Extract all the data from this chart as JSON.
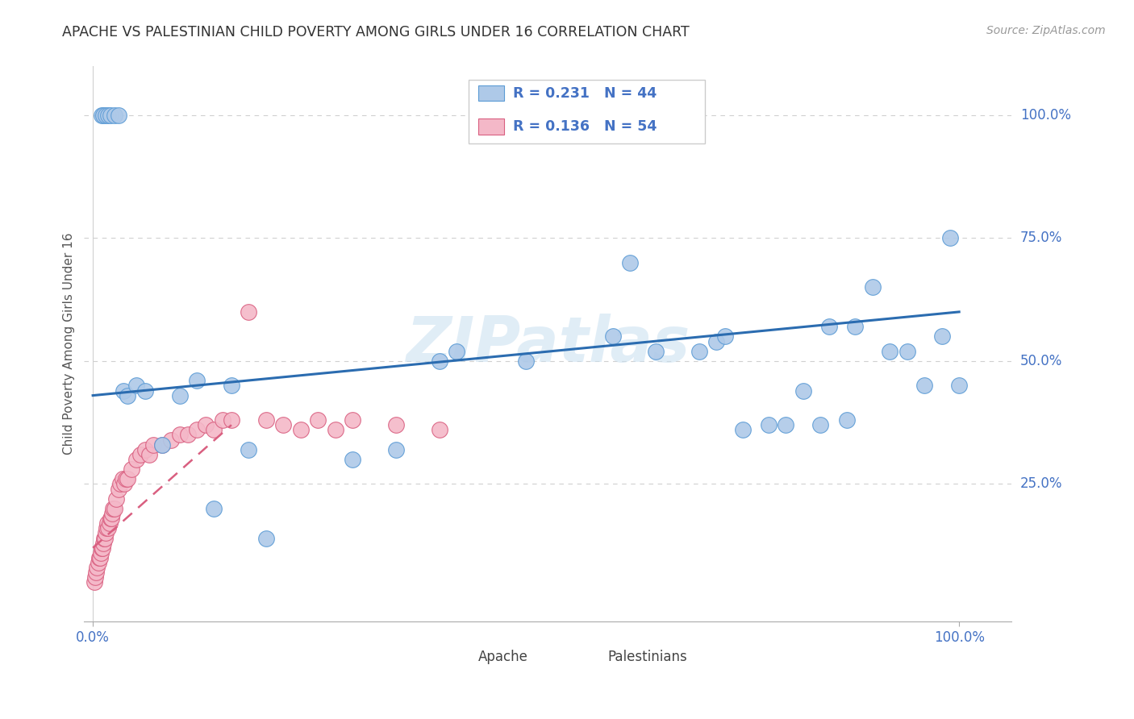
{
  "title": "APACHE VS PALESTINIAN CHILD POVERTY AMONG GIRLS UNDER 16 CORRELATION CHART",
  "source": "Source: ZipAtlas.com",
  "ylabel": "Child Poverty Among Girls Under 16",
  "watermark": "ZIPatlas",
  "apache_R": "0.231",
  "apache_N": "44",
  "palestinian_R": "0.136",
  "palestinian_N": "54",
  "apache_color": "#aec9e8",
  "apache_edge": "#5b9bd5",
  "palestinian_color": "#f4b8c8",
  "palestinian_edge": "#d95f80",
  "trendline_apache_color": "#2b6cb0",
  "trendline_palestinian_color": "#d95f80",
  "background_color": "#ffffff",
  "grid_color": "#d0d0d0",
  "title_color": "#333333",
  "legend_text_color": "#4472c4",
  "axis_tick_color": "#4472c4",
  "apache_x": [
    0.01,
    0.012,
    0.015,
    0.018,
    0.02,
    0.025,
    0.03,
    0.035,
    0.04,
    0.05,
    0.06,
    0.08,
    0.1,
    0.12,
    0.14,
    0.16,
    0.18,
    0.2,
    0.3,
    0.35,
    0.4,
    0.42,
    0.5,
    0.6,
    0.62,
    0.65,
    0.7,
    0.72,
    0.73,
    0.75,
    0.78,
    0.8,
    0.82,
    0.84,
    0.85,
    0.87,
    0.88,
    0.9,
    0.92,
    0.94,
    0.96,
    0.98,
    0.99,
    1.0
  ],
  "apache_y": [
    1.0,
    1.0,
    1.0,
    1.0,
    1.0,
    1.0,
    1.0,
    0.44,
    0.43,
    0.45,
    0.44,
    0.33,
    0.43,
    0.46,
    0.2,
    0.45,
    0.32,
    0.14,
    0.3,
    0.32,
    0.5,
    0.52,
    0.5,
    0.55,
    0.7,
    0.52,
    0.52,
    0.54,
    0.55,
    0.36,
    0.37,
    0.37,
    0.44,
    0.37,
    0.57,
    0.38,
    0.57,
    0.65,
    0.52,
    0.52,
    0.45,
    0.55,
    0.75,
    0.45
  ],
  "palestinian_x": [
    0.002,
    0.003,
    0.004,
    0.005,
    0.006,
    0.007,
    0.008,
    0.009,
    0.01,
    0.011,
    0.012,
    0.013,
    0.014,
    0.015,
    0.016,
    0.017,
    0.018,
    0.019,
    0.02,
    0.021,
    0.022,
    0.023,
    0.025,
    0.027,
    0.03,
    0.032,
    0.034,
    0.036,
    0.038,
    0.04,
    0.045,
    0.05,
    0.055,
    0.06,
    0.065,
    0.07,
    0.08,
    0.09,
    0.1,
    0.11,
    0.12,
    0.13,
    0.14,
    0.15,
    0.16,
    0.18,
    0.2,
    0.22,
    0.24,
    0.26,
    0.28,
    0.3,
    0.35,
    0.4
  ],
  "palestinian_y": [
    0.05,
    0.06,
    0.07,
    0.08,
    0.09,
    0.1,
    0.1,
    0.11,
    0.12,
    0.12,
    0.13,
    0.14,
    0.14,
    0.15,
    0.16,
    0.17,
    0.16,
    0.17,
    0.18,
    0.18,
    0.19,
    0.2,
    0.2,
    0.22,
    0.24,
    0.25,
    0.26,
    0.25,
    0.26,
    0.26,
    0.28,
    0.3,
    0.31,
    0.32,
    0.31,
    0.33,
    0.33,
    0.34,
    0.35,
    0.35,
    0.36,
    0.37,
    0.36,
    0.38,
    0.38,
    0.6,
    0.38,
    0.37,
    0.36,
    0.38,
    0.36,
    0.38,
    0.37,
    0.36
  ],
  "apache_trendline": [
    0.0,
    1.0,
    0.43,
    0.6
  ],
  "palestinian_trendline": [
    0.0,
    0.16,
    0.12,
    0.37
  ],
  "ytick_positions": [
    0.25,
    0.5,
    0.75,
    1.0
  ],
  "ytick_labels": [
    "25.0%",
    "50.0%",
    "75.0%",
    "100.0%"
  ],
  "xtick_positions": [
    0.0,
    1.0
  ],
  "xtick_labels": [
    "0.0%",
    "100.0%"
  ]
}
